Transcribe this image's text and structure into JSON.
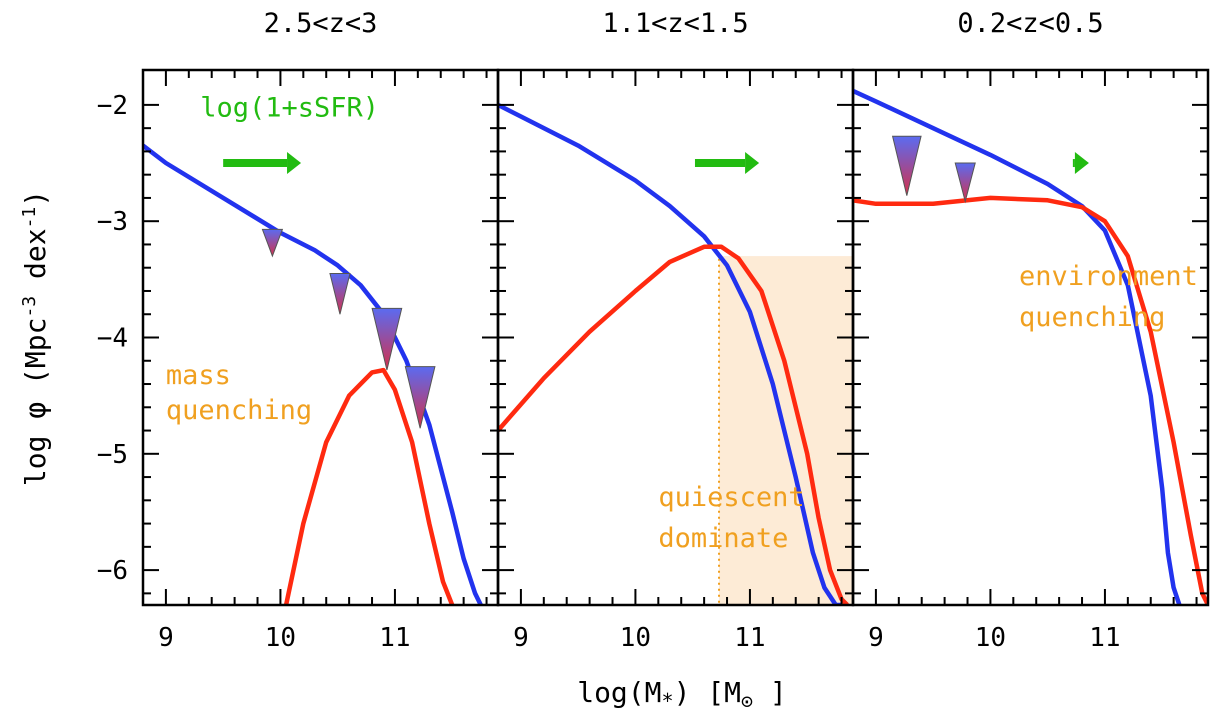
{
  "colors": {
    "total": "#2233ee",
    "quiescent": "#ff2a10",
    "annotation": "#f0a020",
    "arrow": "#22bb11",
    "shade": "#fdebd6",
    "marker_top": "#5b6bf0",
    "marker_bottom": "#d4304a"
  },
  "chart_data": {
    "type": "line",
    "xlabel_main": "log(M",
    "xlabel_sub": "*",
    "xlabel_unit": "[M",
    "ylabel": "log φ (Mpc",
    "ylabel_exp": "-3",
    "ylabel_unit": "dex",
    "ylabel_exp2": "-1",
    "xlim": [
      8.8,
      11.9
    ],
    "ylim": [
      -6.3,
      -1.7
    ],
    "x_tick_labels": [
      "9",
      "10",
      "11"
    ],
    "y_tick_labels": [
      "−2",
      "−3",
      "−4",
      "−5",
      "−6"
    ],
    "y_tick_values": [
      -2,
      -3,
      -4,
      -5,
      -6
    ],
    "x_tick_values": [
      9,
      10,
      11
    ],
    "panels": [
      {
        "title": "2.5<z<3",
        "series": [
          {
            "role": "total",
            "color": "#2233ee",
            "x": [
              8.8,
              9.0,
              9.5,
              10.0,
              10.3,
              10.5,
              10.7,
              10.9,
              11.1,
              11.3,
              11.5,
              11.6,
              11.7,
              11.75
            ],
            "y": [
              -2.35,
              -2.5,
              -2.8,
              -3.1,
              -3.25,
              -3.38,
              -3.55,
              -3.8,
              -4.2,
              -4.75,
              -5.5,
              -5.9,
              -6.2,
              -6.3
            ]
          },
          {
            "role": "quiescent",
            "color": "#ff2a10",
            "x": [
              10.05,
              10.2,
              10.4,
              10.6,
              10.8,
              10.9,
              11.0,
              11.15,
              11.3,
              11.42,
              11.5
            ],
            "y": [
              -6.3,
              -5.6,
              -4.9,
              -4.5,
              -4.3,
              -4.28,
              -4.45,
              -4.9,
              -5.6,
              -6.1,
              -6.3
            ]
          }
        ],
        "markers": [
          {
            "x": 9.93,
            "top": -3.07,
            "bottom": -3.3
          },
          {
            "x": 10.52,
            "top": -3.45,
            "bottom": -3.8
          },
          {
            "x": 10.93,
            "top": -3.75,
            "bottom": -4.28
          },
          {
            "x": 11.22,
            "top": -4.25,
            "bottom": -4.78
          }
        ],
        "arrow": {
          "x_start": 9.5,
          "x_end": 10.18,
          "y": -2.5
        },
        "annotations": [
          {
            "text": "log(1+sSFR)",
            "x": 9.3,
            "y": -2.1,
            "cls": "green"
          },
          {
            "text": "mass",
            "x": 9.0,
            "y": -4.4,
            "cls": "orange"
          },
          {
            "text": "quenching",
            "x": 9.0,
            "y": -4.7,
            "cls": "orange"
          }
        ]
      },
      {
        "title": "1.1<z<1.5",
        "series": [
          {
            "role": "total",
            "color": "#2233ee",
            "x": [
              8.8,
              9.0,
              9.5,
              10.0,
              10.3,
              10.6,
              10.8,
              11.0,
              11.2,
              11.4,
              11.55,
              11.65,
              11.75,
              11.8
            ],
            "y": [
              -2.0,
              -2.1,
              -2.35,
              -2.65,
              -2.87,
              -3.13,
              -3.38,
              -3.78,
              -4.4,
              -5.2,
              -5.85,
              -6.15,
              -6.3,
              -6.3
            ]
          },
          {
            "role": "quiescent",
            "color": "#ff2a10",
            "x": [
              8.8,
              9.2,
              9.6,
              10.0,
              10.3,
              10.6,
              10.75,
              10.9,
              11.1,
              11.3,
              11.5,
              11.6,
              11.7,
              11.8,
              11.85
            ],
            "y": [
              -4.8,
              -4.35,
              -3.95,
              -3.6,
              -3.35,
              -3.22,
              -3.22,
              -3.32,
              -3.6,
              -4.2,
              -5.0,
              -5.55,
              -6.0,
              -6.25,
              -6.3
            ]
          }
        ],
        "shade": {
          "x_from": 10.73,
          "x_to": 11.9,
          "y_top": -3.3
        },
        "vline_x": 10.73,
        "arrow": {
          "x_start": 10.52,
          "x_end": 11.08,
          "y": -2.5
        },
        "annotations": [
          {
            "text": "quiescent",
            "x": 10.2,
            "y": -5.45,
            "cls": "orange"
          },
          {
            "text": "dominate",
            "x": 10.2,
            "y": -5.8,
            "cls": "orange"
          }
        ]
      },
      {
        "title": "0.2<z<0.5",
        "series": [
          {
            "role": "total",
            "color": "#2233ee",
            "x": [
              8.8,
              9.0,
              9.5,
              10.0,
              10.5,
              10.8,
              11.0,
              11.2,
              11.4,
              11.5,
              11.55,
              11.6,
              11.65
            ],
            "y": [
              -1.88,
              -1.97,
              -2.2,
              -2.43,
              -2.68,
              -2.87,
              -3.08,
              -3.55,
              -4.5,
              -5.3,
              -5.85,
              -6.15,
              -6.3
            ]
          },
          {
            "role": "quiescent",
            "color": "#ff2a10",
            "x": [
              8.8,
              9.0,
              9.5,
              10.0,
              10.5,
              10.8,
              11.0,
              11.2,
              11.4,
              11.6,
              11.75,
              11.85,
              11.9
            ],
            "y": [
              -2.82,
              -2.85,
              -2.85,
              -2.8,
              -2.82,
              -2.88,
              -3.0,
              -3.3,
              -3.95,
              -4.9,
              -5.7,
              -6.2,
              -6.3
            ]
          }
        ],
        "markers": [
          {
            "x": 9.27,
            "top": -2.27,
            "bottom": -2.78
          },
          {
            "x": 9.78,
            "top": -2.5,
            "bottom": -2.83
          }
        ],
        "arrow": {
          "x_start": 10.72,
          "x_end": 10.86,
          "y": -2.5
        },
        "annotations": [
          {
            "text": "environment",
            "x": 10.25,
            "y": -3.55,
            "cls": "orange"
          },
          {
            "text": "quenching",
            "x": 10.25,
            "y": -3.9,
            "cls": "orange"
          }
        ]
      }
    ]
  }
}
